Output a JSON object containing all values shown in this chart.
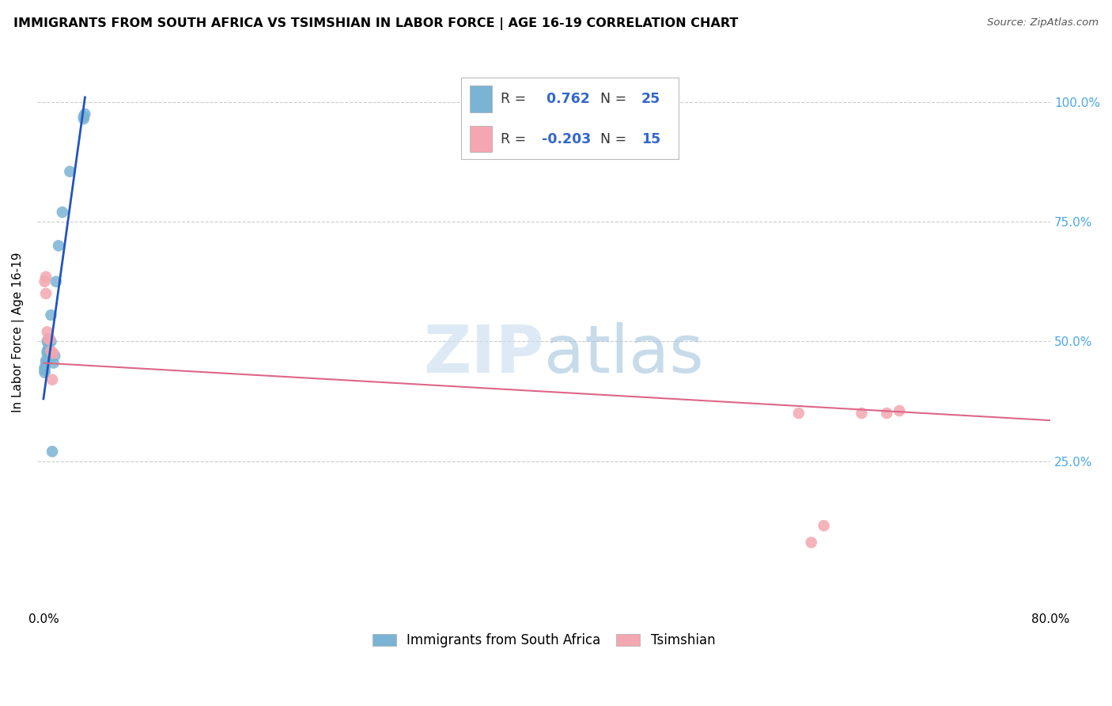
{
  "title": "IMMIGRANTS FROM SOUTH AFRICA VS TSIMSHIAN IN LABOR FORCE | AGE 16-19 CORRELATION CHART",
  "source": "Source: ZipAtlas.com",
  "ylabel": "In Labor Force | Age 16-19",
  "y_tick_labels": [
    "100.0%",
    "75.0%",
    "50.0%",
    "25.0%"
  ],
  "y_tick_values": [
    1.0,
    0.75,
    0.5,
    0.25
  ],
  "x_tick_positions": [
    0.0,
    0.16,
    0.32,
    0.48,
    0.64,
    0.8
  ],
  "x_tick_labels": [
    "0.0%",
    "",
    "",
    "",
    "",
    "80.0%"
  ],
  "legend_bottom": [
    "Immigrants from South Africa",
    "Tsimshian"
  ],
  "blue_scatter_x": [
    0.001,
    0.001,
    0.001,
    0.002,
    0.002,
    0.003,
    0.003,
    0.003,
    0.004,
    0.004,
    0.004,
    0.005,
    0.005,
    0.006,
    0.006,
    0.007,
    0.008,
    0.009,
    0.01,
    0.012,
    0.015,
    0.021,
    0.032,
    0.032,
    0.033
  ],
  "blue_scatter_y": [
    0.435,
    0.44,
    0.445,
    0.455,
    0.46,
    0.475,
    0.48,
    0.5,
    0.485,
    0.495,
    0.505,
    0.465,
    0.48,
    0.5,
    0.555,
    0.27,
    0.455,
    0.47,
    0.625,
    0.7,
    0.77,
    0.855,
    0.965,
    0.97,
    0.975
  ],
  "pink_scatter_x": [
    0.001,
    0.002,
    0.002,
    0.003,
    0.004,
    0.005,
    0.006,
    0.007,
    0.008,
    0.6,
    0.61,
    0.62,
    0.65,
    0.67,
    0.68
  ],
  "pink_scatter_y": [
    0.625,
    0.6,
    0.635,
    0.52,
    0.505,
    0.505,
    0.48,
    0.42,
    0.475,
    0.35,
    0.08,
    0.115,
    0.35,
    0.35,
    0.355
  ],
  "blue_line_x": [
    0.0,
    0.033
  ],
  "blue_line_y": [
    0.38,
    1.01
  ],
  "pink_line_x": [
    0.0,
    0.8
  ],
  "pink_line_y": [
    0.455,
    0.335
  ],
  "xlim": [
    -0.005,
    0.8
  ],
  "ylim": [
    -0.06,
    1.1
  ],
  "blue_color": "#7ab3d4",
  "pink_color": "#f4a7b0",
  "blue_line_color": "#2255bb",
  "pink_line_color": "#dd6688",
  "scatter_size": 110,
  "background_color": "#ffffff",
  "grid_color": "#cccccc",
  "legend_r1": "R = ",
  "legend_v1": " 0.762",
  "legend_n1": "  N = ",
  "legend_nv1": "25",
  "legend_r2": "R = ",
  "legend_v2": "-0.203",
  "legend_n2": "  N = ",
  "legend_nv2": "15",
  "legend_text_color": "#333333",
  "legend_value_color": "#3366cc"
}
